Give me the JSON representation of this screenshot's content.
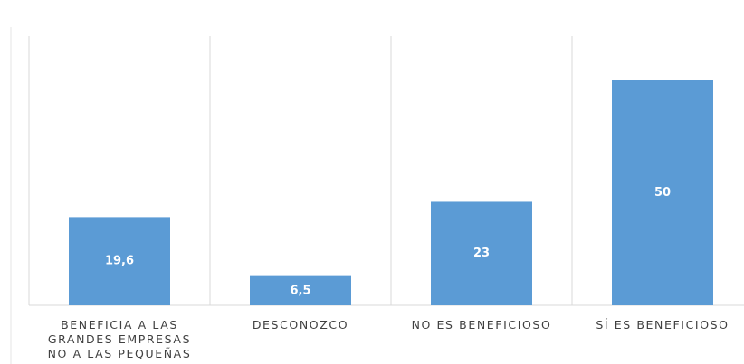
{
  "chart_data": {
    "type": "bar",
    "categories": [
      "BENEFICIA A LAS GRANDES EMPRESAS NO A LAS PEQUEÑAS",
      "DESCONOZCO",
      "NO ES BENEFICIOSO",
      "SÍ ES BENEFICIOSO"
    ],
    "values": [
      19.6,
      6.5,
      23,
      50
    ],
    "value_labels": [
      "19,6",
      "6,5",
      "23",
      "50"
    ],
    "color": "#5b9bd5"
  }
}
